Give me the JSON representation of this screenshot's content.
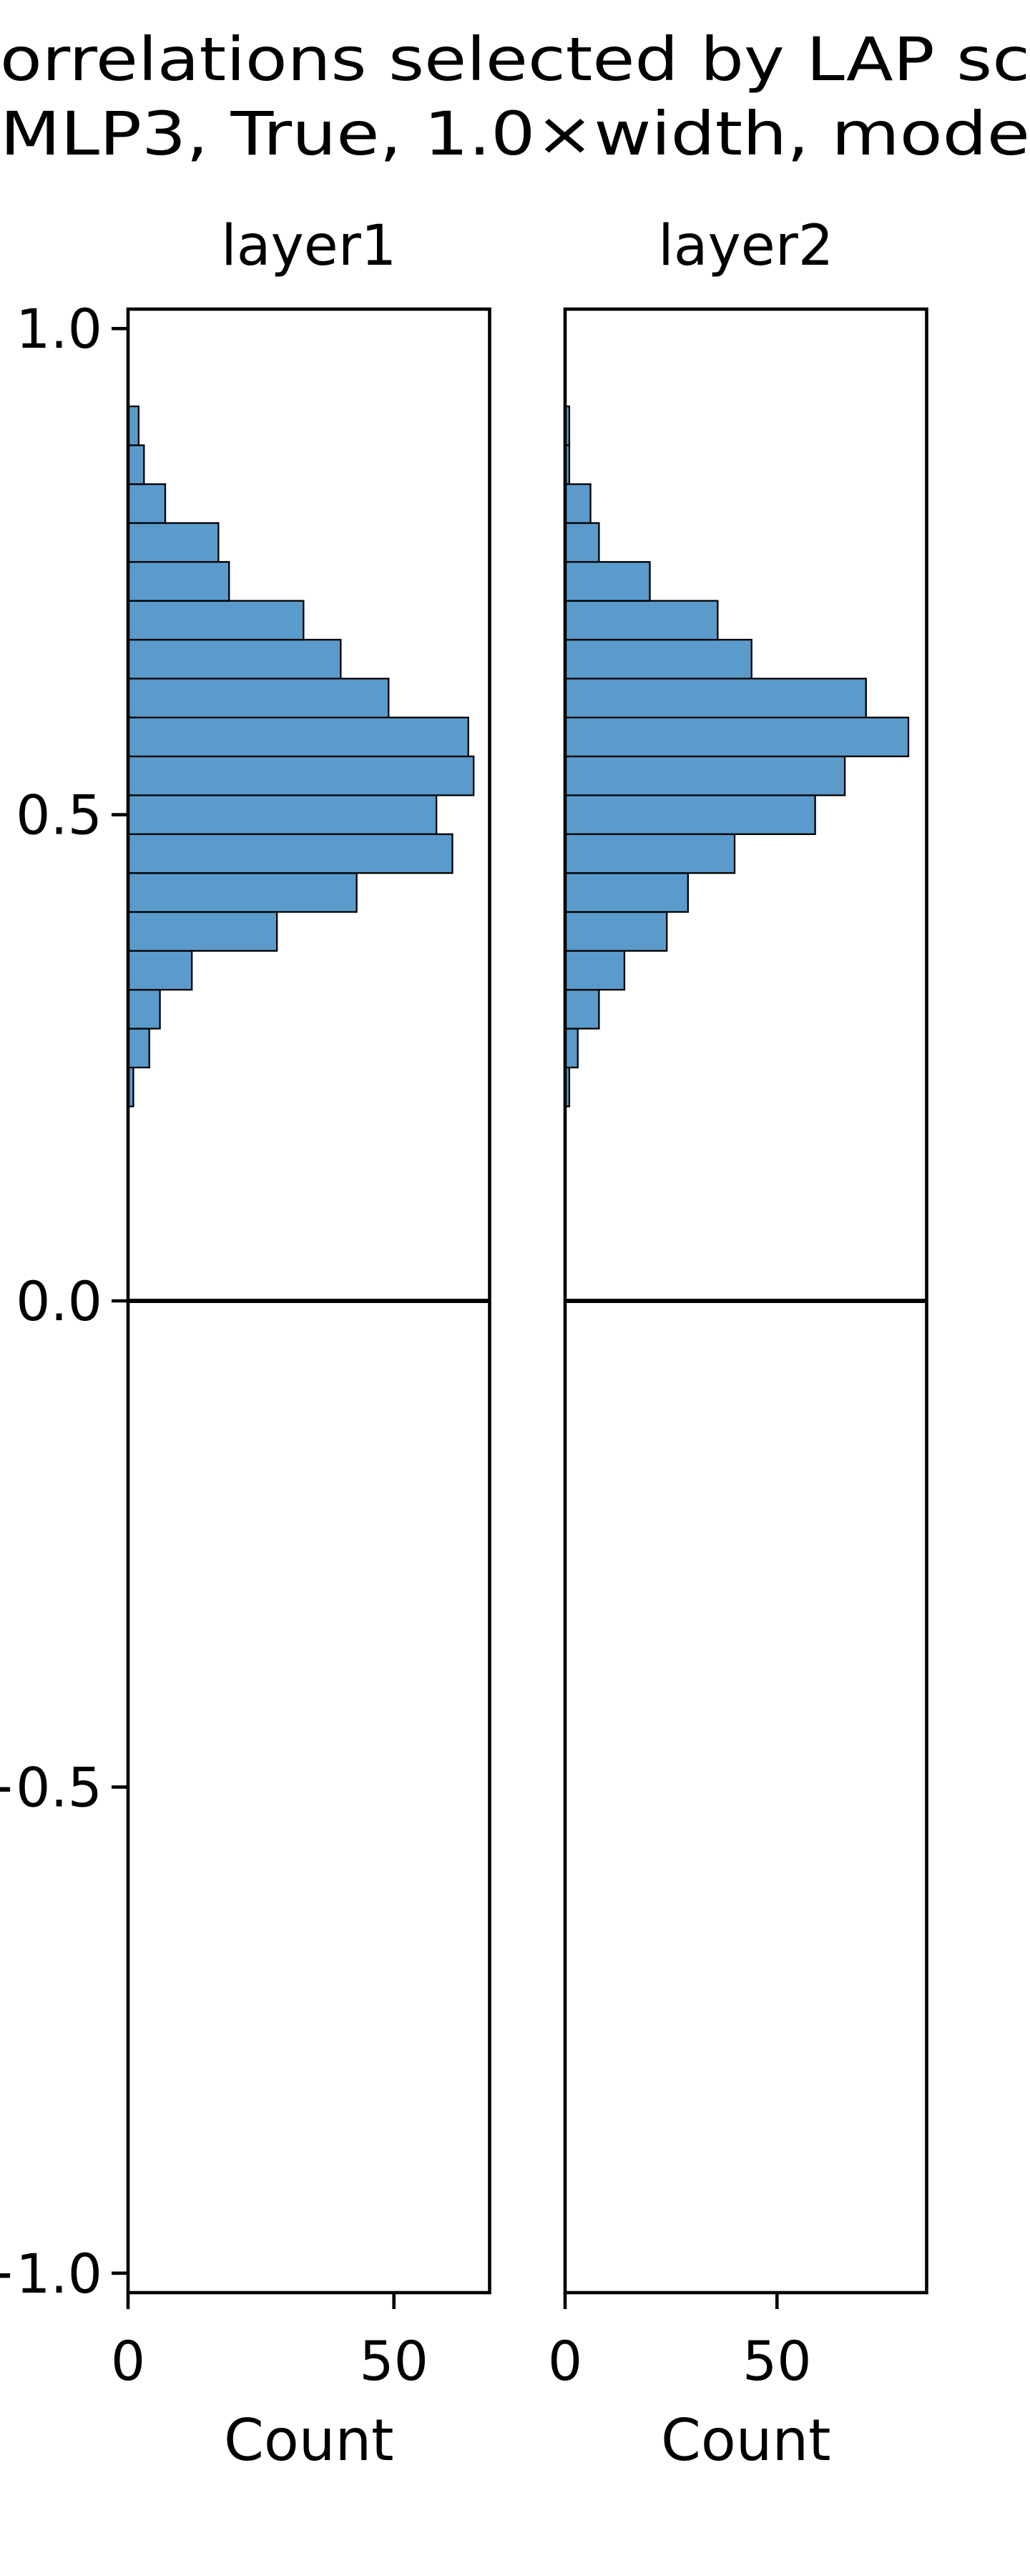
{
  "title": [
    "orrelations selected by LAP sc",
    "MLP3, True, 1.0×width, mode"
  ],
  "chart_data": [
    {
      "type": "histogram",
      "orientation": "horizontal",
      "title": "layer1",
      "xlabel": "Count",
      "color": "#5a9bcb",
      "bins": [
        0.2,
        0.24,
        0.28,
        0.32,
        0.36,
        0.4,
        0.44,
        0.48,
        0.52,
        0.56,
        0.6,
        0.64,
        0.68,
        0.72,
        0.76,
        0.8,
        0.84,
        0.88,
        0.92
      ],
      "values": [
        1,
        4,
        6,
        12,
        28,
        43,
        61,
        58,
        65,
        64,
        49,
        40,
        33,
        19,
        17,
        7,
        3,
        2
      ],
      "xlim": [
        0,
        68
      ],
      "xticks": [
        0,
        50
      ],
      "ylim": [
        -1.02,
        1.02
      ],
      "yticks": [
        {
          "value": -1,
          "label": "−1.0"
        },
        {
          "value": -0.5,
          "label": "−0.5"
        },
        {
          "value": 0,
          "label": "0.0"
        },
        {
          "value": 0.5,
          "label": "0.5"
        },
        {
          "value": 1,
          "label": "1.0"
        }
      ],
      "hline": 0
    },
    {
      "type": "histogram",
      "orientation": "horizontal",
      "title": "layer2",
      "xlabel": "Count",
      "color": "#5a9bcb",
      "bins": [
        0.2,
        0.24,
        0.28,
        0.32,
        0.36,
        0.4,
        0.44,
        0.48,
        0.52,
        0.56,
        0.6,
        0.64,
        0.68,
        0.72,
        0.76,
        0.8,
        0.84,
        0.88,
        0.92
      ],
      "values": [
        1,
        3,
        8,
        14,
        24,
        29,
        40,
        59,
        66,
        81,
        71,
        44,
        36,
        20,
        8,
        6,
        1,
        1
      ],
      "xlim": [
        0,
        85.3
      ],
      "xticks": [
        0,
        50
      ],
      "ylim": [
        -1.02,
        1.02
      ],
      "hline": 0
    }
  ]
}
